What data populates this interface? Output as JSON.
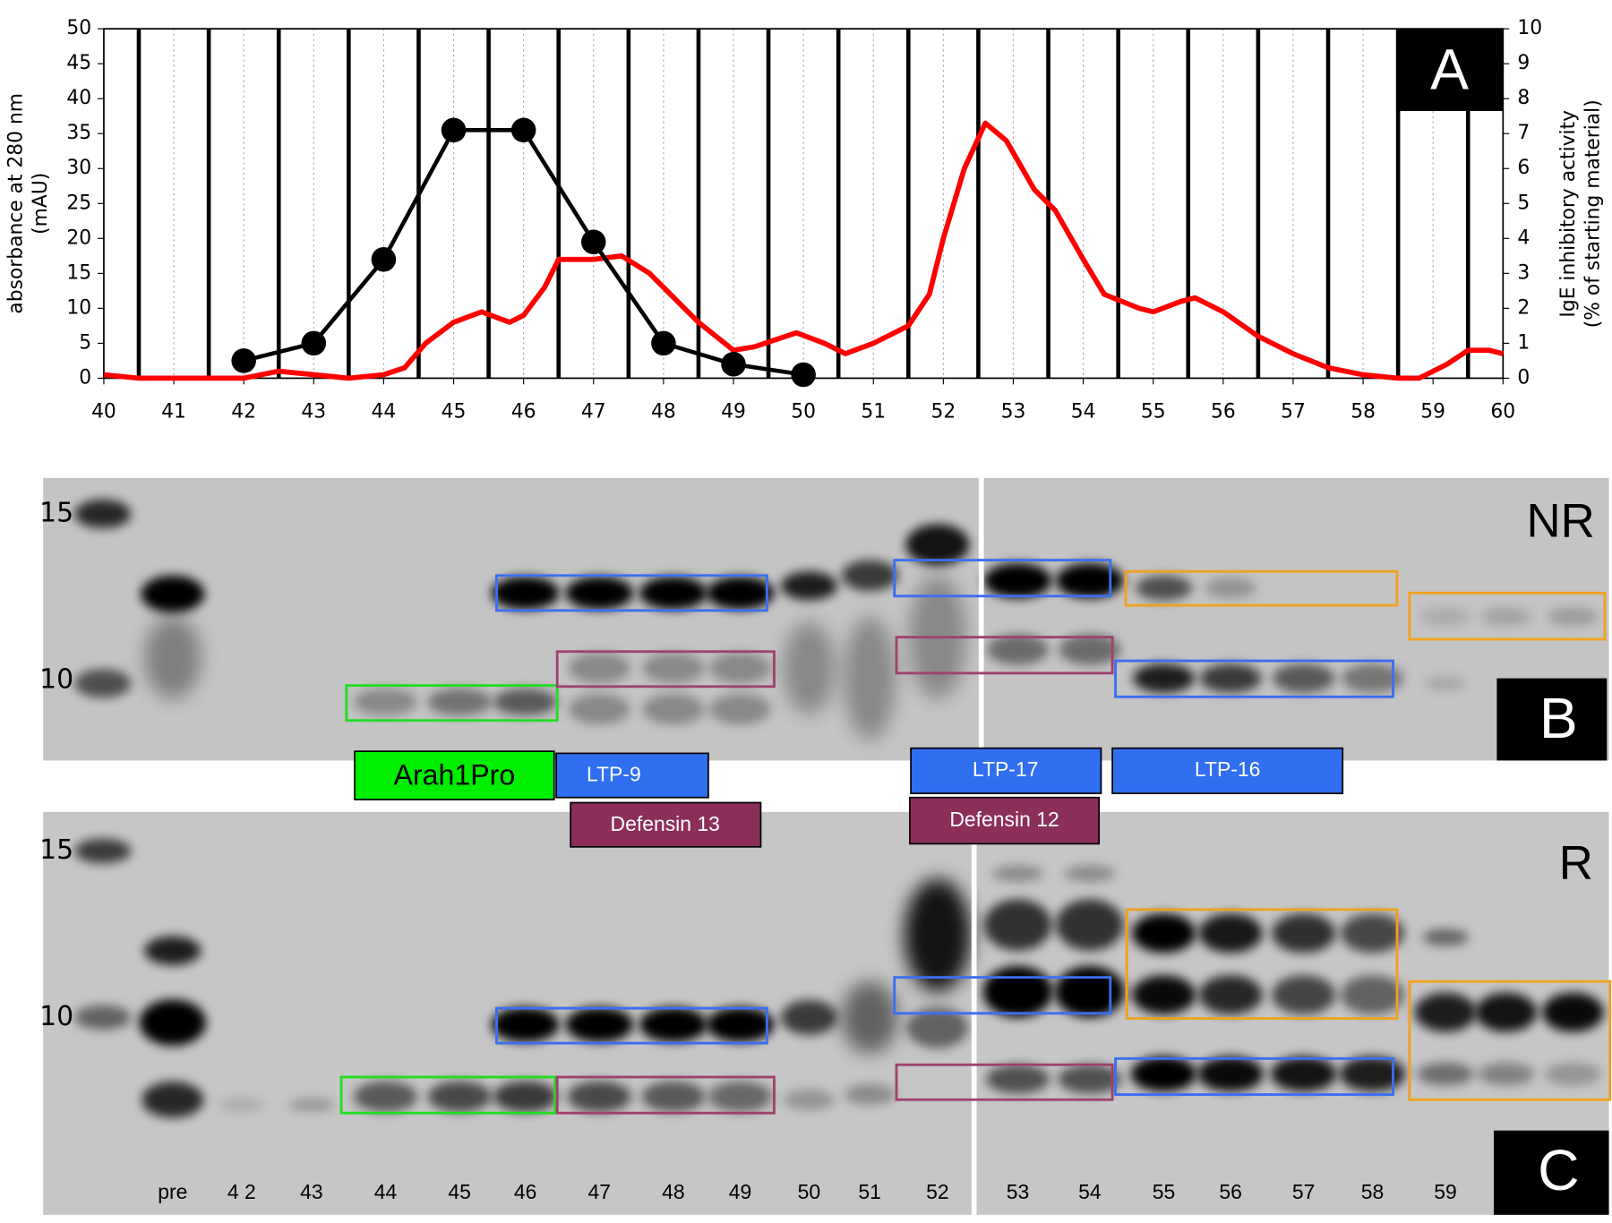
{
  "chart_data": {
    "type": "line",
    "panel_label": "A",
    "ylabel": [
      "absorbance at 280 nm",
      "(mAU)"
    ],
    "y2label": [
      "IgE inhibitory activity",
      "(% of starting material)"
    ],
    "xlim": [
      40,
      60
    ],
    "xticks": [
      40,
      41,
      42,
      43,
      44,
      45,
      46,
      47,
      48,
      49,
      50,
      51,
      52,
      53,
      54,
      55,
      56,
      57,
      58,
      59,
      60
    ],
    "ylim": [
      0,
      50
    ],
    "yticks": [
      0,
      5,
      10,
      15,
      20,
      25,
      30,
      35,
      40,
      45,
      50
    ],
    "y2lim": [
      0,
      10
    ],
    "y2ticks": [
      0,
      1,
      2,
      3,
      4,
      5,
      6,
      7,
      8,
      9,
      10
    ],
    "grid": true,
    "series": [
      {
        "color": "#ff0000",
        "markers": false,
        "x": [
          40,
          40.5,
          41,
          42,
          42.5,
          43,
          43.5,
          44,
          44.3,
          44.6,
          45,
          45.4,
          45.8,
          46,
          46.3,
          46.5,
          47,
          47.4,
          47.8,
          48,
          48.5,
          49,
          49.3,
          49.6,
          49.9,
          50.3,
          50.6,
          51,
          51.5,
          51.8,
          52,
          52.3,
          52.6,
          52.9,
          53.3,
          53.6,
          54,
          54.3,
          54.8,
          55,
          55.4,
          55.6,
          56,
          56.5,
          57,
          57.5,
          58,
          58.5,
          58.8,
          59.2,
          59.5,
          59.8,
          60
        ],
        "values": [
          0.5,
          0,
          0,
          0,
          1,
          0.5,
          0,
          0.5,
          1.5,
          5,
          8,
          9.5,
          8,
          9,
          13,
          17,
          17,
          17.5,
          15,
          13,
          8,
          4,
          4.5,
          5.5,
          6.5,
          5,
          3.5,
          5,
          7.5,
          12,
          20,
          30,
          36.5,
          34,
          27,
          24,
          17,
          12,
          10,
          9.5,
          11,
          11.5,
          9.5,
          6,
          3.5,
          1.5,
          0.5,
          0,
          0,
          2,
          4,
          4,
          3.5
        ]
      },
      {
        "color": "#000000",
        "markers": true,
        "axis": "y2",
        "x": [
          42,
          43,
          44,
          45,
          46,
          47,
          48,
          49,
          50
        ],
        "values": [
          0.5,
          1,
          3.4,
          7.1,
          7.1,
          3.9,
          1,
          0.4,
          0.1
        ]
      }
    ]
  },
  "gel": {
    "panel_b": "B",
    "panel_c": "C",
    "nr_label": "NR",
    "r_label": "R",
    "markers": [
      "15",
      "10"
    ],
    "lanes": [
      "pre",
      "4 2",
      "43",
      "44",
      "45",
      "46",
      "47",
      "48",
      "49",
      "50",
      "51",
      "52",
      "53",
      "54",
      "55",
      "56",
      "57",
      "58",
      "59"
    ],
    "tags": [
      "Arah1Pro",
      "LTP-9",
      "Defensin 13",
      "LTP-17",
      "Defensin 12",
      "LTP-16"
    ]
  }
}
